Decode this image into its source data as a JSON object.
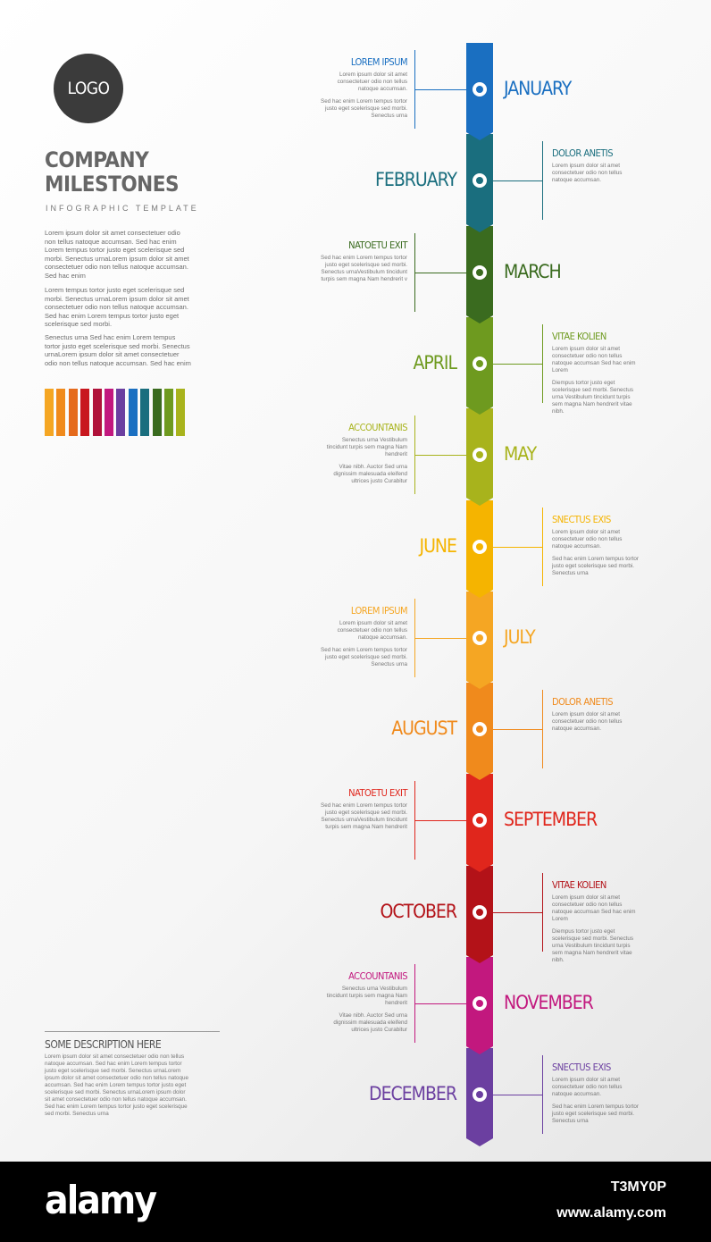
{
  "logo": "LOGO",
  "title": "COMPANY MILESTONES",
  "subtitle": "INFOGRAPHIC TEMPLATE",
  "paragraphs": [
    "Lorem ipsum dolor sit amet consectetuer odio non tellus natoque accumsan. Sed hac enim Lorem tempus tortor justo eget scelerisque sed morbi. Senectus urnaLorem ipsum dolor sit amet consectetuer odio non tellus natoque accumsan. Sed hac enim",
    "Lorem tempus tortor justo eget scelerisque sed morbi. Senectus urnaLorem ipsum dolor sit amet consectetuer odio non tellus natoque accumsan. Sed hac enim Lorem tempus tortor justo eget scelerisque sed morbi.",
    "Senectus urna Sed hac enim Lorem tempus tortor justo eget scelerisque sed morbi. Senectus urnaLorem ipsum dolor sit amet consectetuer odio non tellus natoque accumsan. Sed hac enim"
  ],
  "swatches": [
    "#f5a623",
    "#f08a1c",
    "#e56a1c",
    "#c8171e",
    "#b0123a",
    "#c2187e",
    "#6b3fa0",
    "#1a6fc1",
    "#1a6e7e",
    "#3a6b1f",
    "#6e9a1f",
    "#a8b31c"
  ],
  "milestones": [
    {
      "month": "JANUARY",
      "color": "#1a6fc1",
      "heading": "LOREM IPSUM",
      "text": [
        "Sed hac enim Lorem tempus tortor justo eget scelerisque sed morbi. Senectus urna"
      ],
      "lead": "Lorem ipsum dolor sit amet consectetuer odio non tellus natoque accumsan."
    },
    {
      "month": "FEBRUARY",
      "color": "#1a6e7e",
      "heading": "DOLOR ANETIS",
      "lead": "Lorem ipsum dolor sit amet consectetuer odio non tellus natoque accumsan.",
      "text": []
    },
    {
      "month": "MARCH",
      "color": "#3a6b1f",
      "heading": "NATOETU EXIT",
      "lead": "Sed hac enim Lorem tempus tortor justo eget scelerisque sed morbi. Senectus urnaVestibulum tincidunt turpis sem magna Nam hendrerit v",
      "text": []
    },
    {
      "month": "APRIL",
      "color": "#6e9a1f",
      "heading": "VITAE KOLIEN",
      "lead": "Lorem ipsum dolor sit amet consectetuer odio non tellus natoque accumsan Sed hac enim Lorem",
      "text": [
        "Diempus tortor justo eget scelerisque sed morbi. Senectus urna Vestibulum tincidunt turpis sem magna Nam hendrerit vitae nibh."
      ]
    },
    {
      "month": "MAY",
      "color": "#a8b31c",
      "heading": "ACCOUNTANIS",
      "lead": "Senectus urna Vestibulum tincidunt turpis sem magna Nam hendrerit",
      "text": [
        "Vitae nibh. Auctor Sed urna dignissim malesuada eleifend ultrices justo Curabitur"
      ]
    },
    {
      "month": "JUNE",
      "color": "#f5b400",
      "heading": "SNECTUS EXIS",
      "lead": "Lorem ipsum dolor sit amet consectetuer odio non tellus natoque accumsan.",
      "text": [
        "Sed hac enim Lorem tempus tortor justo eget scelerisque sed morbi. Senectus urna"
      ]
    },
    {
      "month": "JULY",
      "color": "#f5a623",
      "heading": "LOREM IPSUM",
      "lead": "Lorem ipsum dolor sit amet consectetuer odio non tellus natoque accumsan.",
      "text": [
        "Sed hac enim Lorem tempus tortor justo eget scelerisque sed morbi. Senectus urna"
      ]
    },
    {
      "month": "AUGUST",
      "color": "#f08a1c",
      "heading": "DOLOR ANETIS",
      "lead": "Lorem ipsum dolor sit amet consectetuer odio non tellus natoque accumsan.",
      "text": []
    },
    {
      "month": "SEPTEMBER",
      "color": "#e0261c",
      "heading": "NATOETU EXIT",
      "lead": "Sed hac enim Lorem tempus tortor justo eget scelerisque sed morbi. Senectus urnaVestibulum tincidunt turpis sem magna Nam hendrerit",
      "text": []
    },
    {
      "month": "OCTOBER",
      "color": "#b31218",
      "heading": "VITAE KOLIEN",
      "lead": "Lorem ipsum dolor sit amet consectetuer odio non tellus natoque accumsan Sed hac enim Lorem",
      "text": [
        "Diempus tortor justo eget scelerisque sed morbi. Senectus urna Vestibulum tincidunt turpis sem magna Nam hendrerit vitae nibh."
      ]
    },
    {
      "month": "NOVEMBER",
      "color": "#c2187e",
      "heading": "ACCOUNTANIS",
      "lead": "Senectus urna Vestibulum tincidunt turpis sem magna Nam hendrerit",
      "text": [
        "Vitae nibh. Auctor Sed urna dignissim malesuada eleifend ultrices justo Curabitur"
      ]
    },
    {
      "month": "DECEMBER",
      "color": "#6b3fa0",
      "heading": "SNECTUS EXIS",
      "lead": "Lorem ipsum dolor sit amet consectetuer odio non tellus natoque accumsan.",
      "text": [
        "Sed hac enim Lorem tempus tortor justo eget scelerisque sed morbi. Senectus urna"
      ]
    }
  ],
  "description": {
    "title": "SOME DESCRIPTION HERE",
    "text": "Lorem ipsum dolor sit amet consectetuer odio non tellus natoque accumsan. Sed hac enim Lorem tempus tortor justo eget scelerisque sed morbi. Senectus urnaLorem ipsum dolor sit amet consectetuer odio non tellus natoque accumsan. Sed hac enim Lorem tempus tortor justo eget scelerisque sed morbi. Senectus urnaLorem ipsum dolor sit amet consectetuer odio non tellus natoque accumsan. Sed hac enim Lorem tempus tortor justo eget scelerisque sed morbi. Senectus urna"
  },
  "footer": {
    "brand": "alamy",
    "image_id": "T3MY0P",
    "url": "www.alamy.com"
  }
}
